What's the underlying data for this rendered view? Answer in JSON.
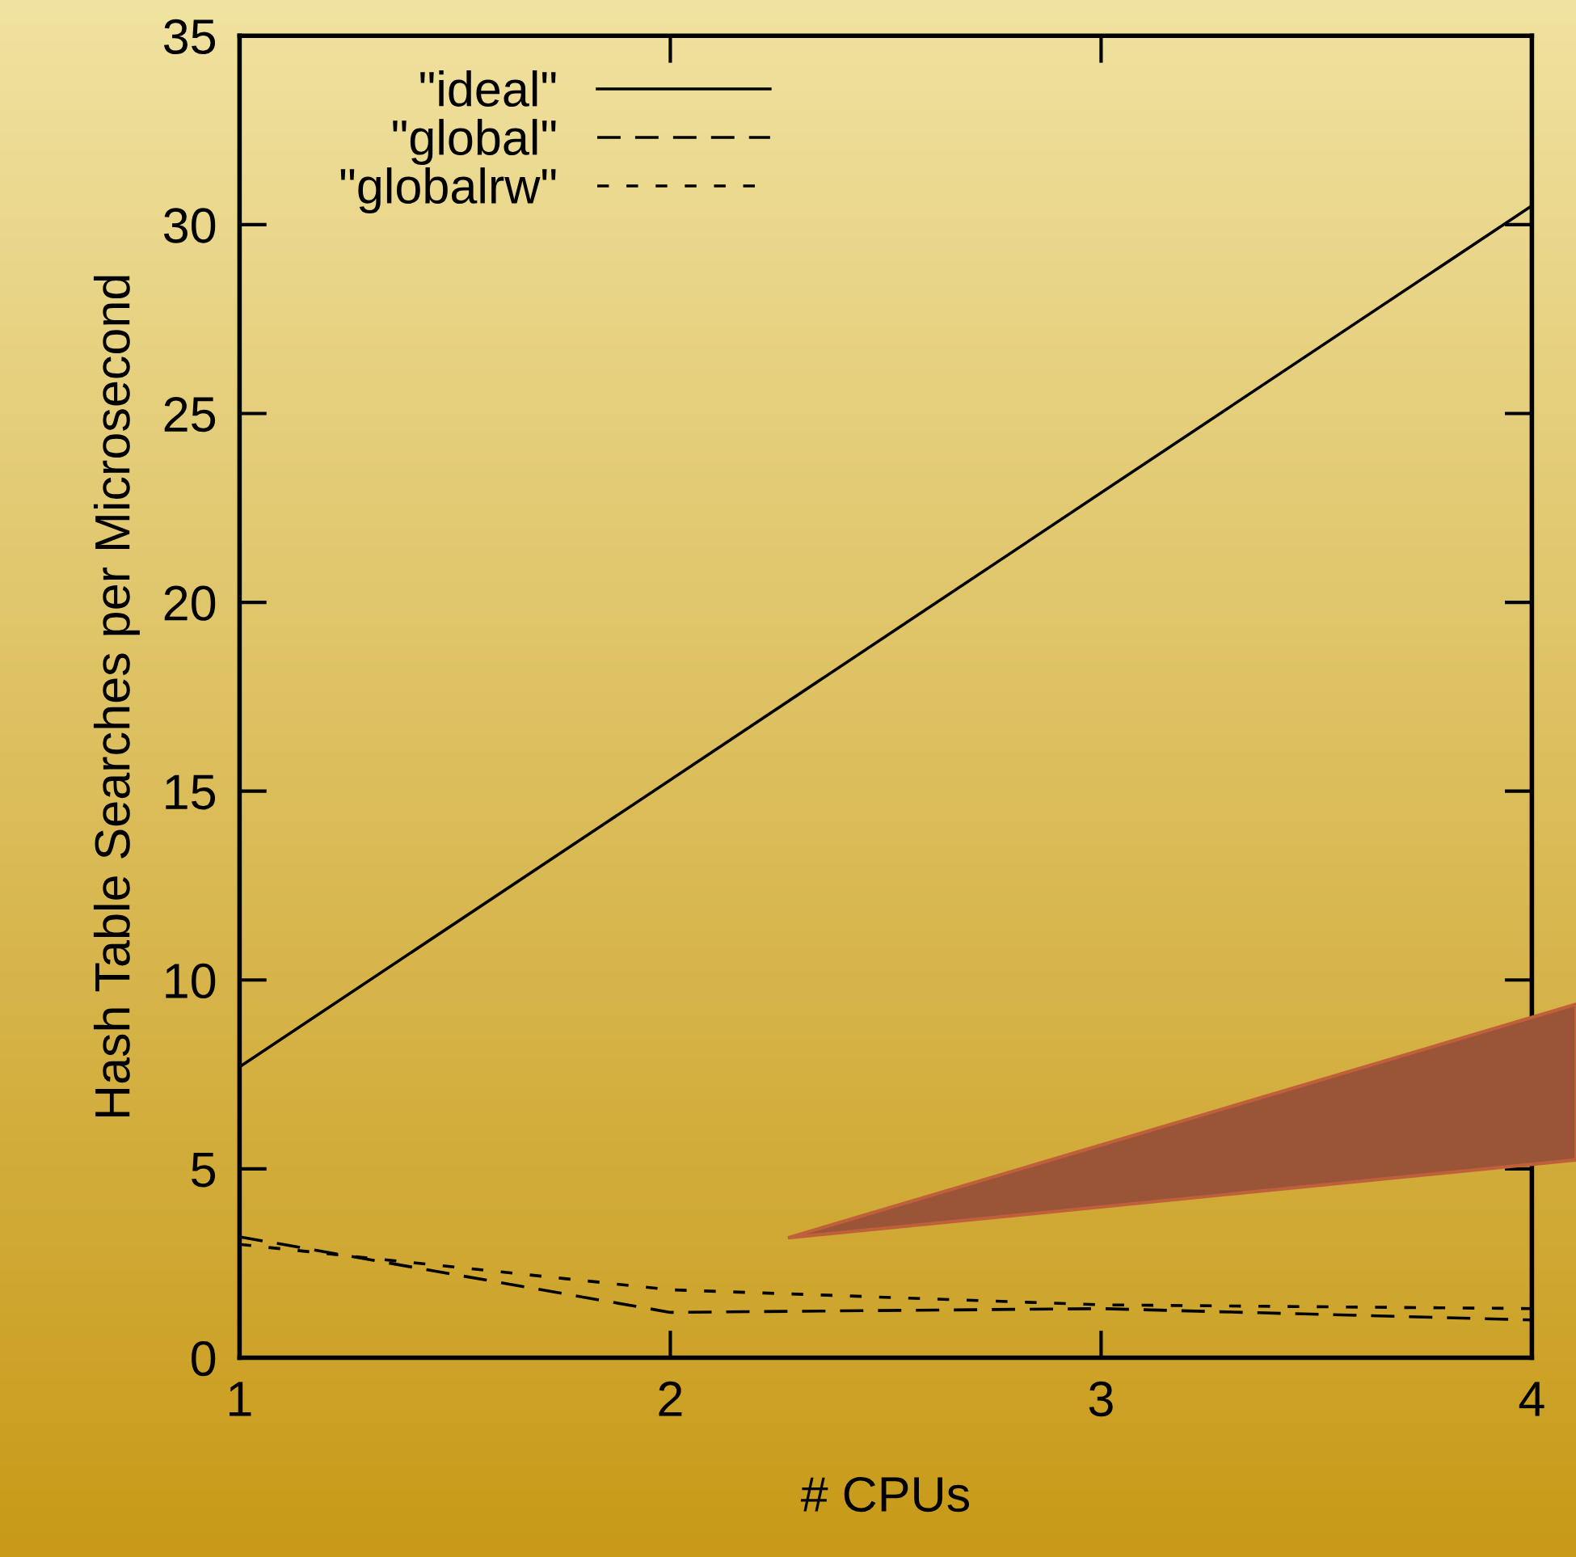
{
  "chart_data": {
    "type": "line",
    "xlabel": "# CPUs",
    "ylabel": "Hash Table Searches per Microsecond",
    "x": [
      1,
      2,
      3,
      4
    ],
    "series": [
      {
        "name": "\"ideal\"",
        "color": "#000000",
        "line_style": "solid",
        "values": [
          7.7,
          15.3,
          22.9,
          30.5
        ]
      },
      {
        "name": "\"global\"",
        "color": "#000000",
        "line_style": "dashed",
        "values": [
          3.2,
          1.2,
          1.3,
          1.0
        ]
      },
      {
        "name": "\"globalrw\"",
        "color": "#000000",
        "line_style": "dotted",
        "values": [
          3.0,
          1.8,
          1.4,
          1.3
        ]
      }
    ],
    "xlim": [
      1,
      4
    ],
    "xticks": [
      1,
      2,
      3,
      4
    ],
    "ylim": [
      0,
      35
    ],
    "yticks": [
      0,
      5,
      10,
      15,
      20,
      25,
      30,
      35
    ],
    "grid": false,
    "legend": "top left",
    "marker": "none"
  }
}
